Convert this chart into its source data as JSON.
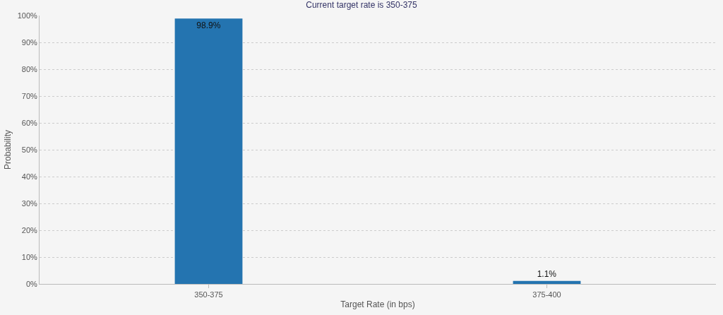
{
  "chart_data": {
    "type": "bar",
    "title": "Current target rate is 350-375",
    "xlabel": "Target Rate (in bps)",
    "ylabel": "Probability",
    "categories": [
      "350-375",
      "375-400"
    ],
    "values": [
      98.9,
      1.1
    ],
    "value_labels": [
      "98.9%",
      "1.1%"
    ],
    "color": "#2474b0",
    "ylim": [
      0,
      100
    ],
    "yticks": [
      {
        "value": 0,
        "label": "0%"
      },
      {
        "value": 10,
        "label": "10%"
      },
      {
        "value": 20,
        "label": "20%"
      },
      {
        "value": 30,
        "label": "30%"
      },
      {
        "value": 40,
        "label": "40%"
      },
      {
        "value": 50,
        "label": "50%"
      },
      {
        "value": 60,
        "label": "60%"
      },
      {
        "value": 70,
        "label": "70%"
      },
      {
        "value": 80,
        "label": "80%"
      },
      {
        "value": 90,
        "label": "90%"
      },
      {
        "value": 100,
        "label": "100%"
      }
    ],
    "grid": "y"
  }
}
